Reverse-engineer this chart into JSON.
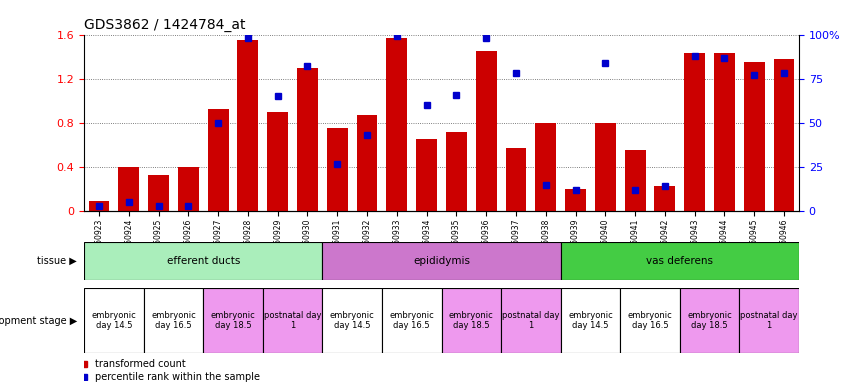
{
  "title": "GDS3862 / 1424784_at",
  "samples": [
    "GSM560923",
    "GSM560924",
    "GSM560925",
    "GSM560926",
    "GSM560927",
    "GSM560928",
    "GSM560929",
    "GSM560930",
    "GSM560931",
    "GSM560932",
    "GSM560933",
    "GSM560934",
    "GSM560935",
    "GSM560936",
    "GSM560937",
    "GSM560938",
    "GSM560939",
    "GSM560940",
    "GSM560941",
    "GSM560942",
    "GSM560943",
    "GSM560944",
    "GSM560945",
    "GSM560946"
  ],
  "transformed_count": [
    0.09,
    0.4,
    0.33,
    0.4,
    0.93,
    1.55,
    0.9,
    1.3,
    0.75,
    0.87,
    1.57,
    0.65,
    0.72,
    1.45,
    0.57,
    0.8,
    0.2,
    0.8,
    0.55,
    0.23,
    1.43,
    1.43,
    1.35,
    1.38
  ],
  "percentile_rank": [
    3,
    5,
    3,
    3,
    50,
    98,
    65,
    82,
    27,
    43,
    99,
    60,
    66,
    98,
    78,
    15,
    12,
    84,
    12,
    14,
    88,
    87,
    77,
    78
  ],
  "ylim_left": [
    0,
    1.6
  ],
  "ylim_right": [
    0,
    100
  ],
  "yticks_left": [
    0,
    0.4,
    0.8,
    1.2,
    1.6
  ],
  "yticks_right": [
    0,
    25,
    50,
    75,
    100
  ],
  "bar_color": "#cc0000",
  "point_color": "#0000cc",
  "tissue_groups": [
    {
      "label": "efferent ducts",
      "start": 0,
      "end": 7,
      "color": "#aaeebb"
    },
    {
      "label": "epididymis",
      "start": 8,
      "end": 15,
      "color": "#cc77cc"
    },
    {
      "label": "vas deferens",
      "start": 16,
      "end": 23,
      "color": "#44cc44"
    }
  ],
  "dev_stage_groups": [
    {
      "label": "embryonic\nday 14.5",
      "start": 0,
      "end": 1,
      "color": "#ffffff"
    },
    {
      "label": "embryonic\nday 16.5",
      "start": 2,
      "end": 3,
      "color": "#ffffff"
    },
    {
      "label": "embryonic\nday 18.5",
      "start": 4,
      "end": 5,
      "color": "#ee99ee"
    },
    {
      "label": "postnatal day\n1",
      "start": 6,
      "end": 7,
      "color": "#ee99ee"
    },
    {
      "label": "embryonic\nday 14.5",
      "start": 8,
      "end": 9,
      "color": "#ffffff"
    },
    {
      "label": "embryonic\nday 16.5",
      "start": 10,
      "end": 11,
      "color": "#ffffff"
    },
    {
      "label": "embryonic\nday 18.5",
      "start": 12,
      "end": 13,
      "color": "#ee99ee"
    },
    {
      "label": "postnatal day\n1",
      "start": 14,
      "end": 15,
      "color": "#ee99ee"
    },
    {
      "label": "embryonic\nday 14.5",
      "start": 16,
      "end": 17,
      "color": "#ffffff"
    },
    {
      "label": "embryonic\nday 16.5",
      "start": 18,
      "end": 19,
      "color": "#ffffff"
    },
    {
      "label": "embryonic\nday 18.5",
      "start": 20,
      "end": 21,
      "color": "#ee99ee"
    },
    {
      "label": "postnatal day\n1",
      "start": 22,
      "end": 23,
      "color": "#ee99ee"
    }
  ],
  "legend_bar_label": "transformed count",
  "legend_point_label": "percentile rank within the sample",
  "tissue_label": "tissue",
  "dev_stage_label": "development stage",
  "bg_color": "#ffffff",
  "axis_bg_color": "#ffffff",
  "grid_color": "#555555"
}
